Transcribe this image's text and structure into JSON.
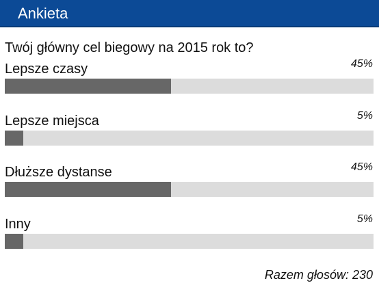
{
  "poll": {
    "title": "Ankieta",
    "question": "Twój główny cel biegowy na 2015 rok to?",
    "options": [
      {
        "label": "Lepsze czasy",
        "percent_label": "45%",
        "percent": 45
      },
      {
        "label": "Lepsze miejsca",
        "percent_label": "5%",
        "percent": 5
      },
      {
        "label": "Dłuższe dystanse",
        "percent_label": "45%",
        "percent": 45
      },
      {
        "label": "Inny",
        "percent_label": "5%",
        "percent": 5
      }
    ],
    "total": "Razem głosów: 230"
  },
  "colors": {
    "header_bg": "#0c4a96",
    "bar_track": "#dcdcdc",
    "bar_fill": "#676767"
  }
}
